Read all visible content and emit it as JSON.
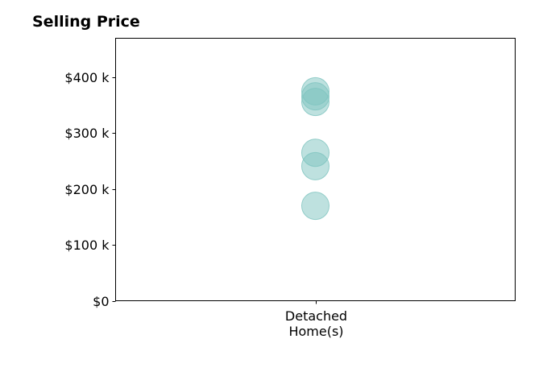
{
  "chart_data": {
    "type": "scatter",
    "title": "Selling Price",
    "xlabel": "",
    "ylabel": "",
    "categories": [
      "Detached\nHome(s)"
    ],
    "series": [
      {
        "category": "Detached\nHome(s)",
        "values": [
          375000,
          366000,
          356000,
          265000,
          241000,
          170000
        ]
      }
    ],
    "ylim": [
      0,
      470000
    ],
    "yticks": [
      0,
      100000,
      200000,
      300000,
      400000
    ],
    "ytick_labels": [
      "$0",
      "$100 k",
      "$200 k",
      "$300 k",
      "$400 k"
    ],
    "marker_color": "#7ec4bf",
    "marker_opacity": 0.5,
    "grid": false,
    "legend": "none"
  }
}
